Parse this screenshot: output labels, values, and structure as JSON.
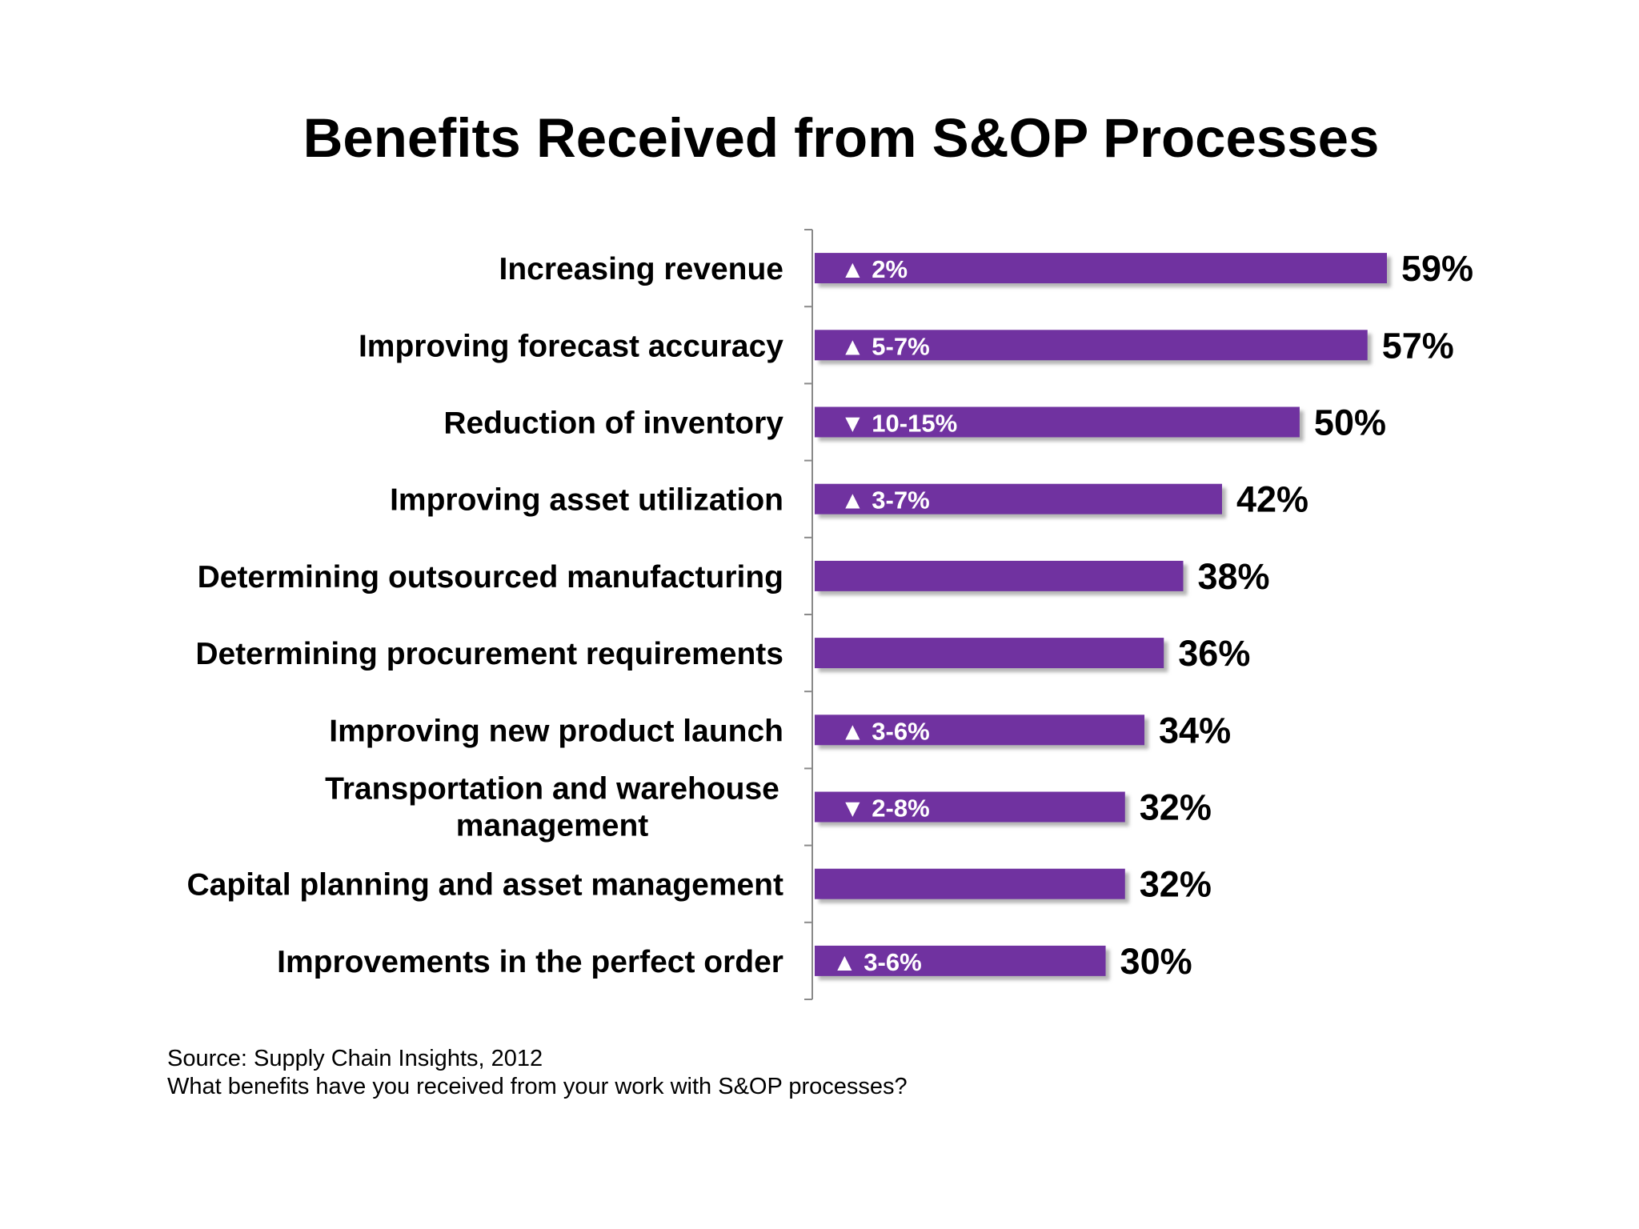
{
  "chart_data": {
    "type": "bar",
    "orientation": "horizontal",
    "title": "Benefits Received from S&OP Processes",
    "categories": [
      [
        "Increasing revenue"
      ],
      [
        "Improving forecast accuracy"
      ],
      [
        "Reduction of inventory"
      ],
      [
        "Improving asset utilization"
      ],
      [
        "Determining outsourced manufacturing"
      ],
      [
        "Determining procurement requirements"
      ],
      [
        "Improving new product launch"
      ],
      [
        "Transportation and warehouse",
        "management"
      ],
      [
        "Capital planning and asset management"
      ],
      [
        "Improvements in the perfect order"
      ]
    ],
    "values": [
      59,
      57,
      50,
      42,
      38,
      36,
      34,
      32,
      32,
      30
    ],
    "value_labels": [
      "59%",
      "57%",
      "50%",
      "42%",
      "38%",
      "36%",
      "34%",
      "32%",
      "32%",
      "30%"
    ],
    "bar_annotations": [
      "▲ 2%",
      "▲ 5-7%",
      "▼ 10-15%",
      "▲ 3-7%",
      "",
      "",
      "▲ 3-6%",
      "▼ 2-8%",
      "",
      "▲ 3-6%"
    ],
    "xlim": [
      0,
      59
    ],
    "grid": false,
    "legend": "none",
    "bar_color": "#7030A0"
  },
  "footnote": {
    "source": "Source: Supply Chain Insights, 2012",
    "question": "What benefits have you received from your work with S&OP processes?"
  }
}
